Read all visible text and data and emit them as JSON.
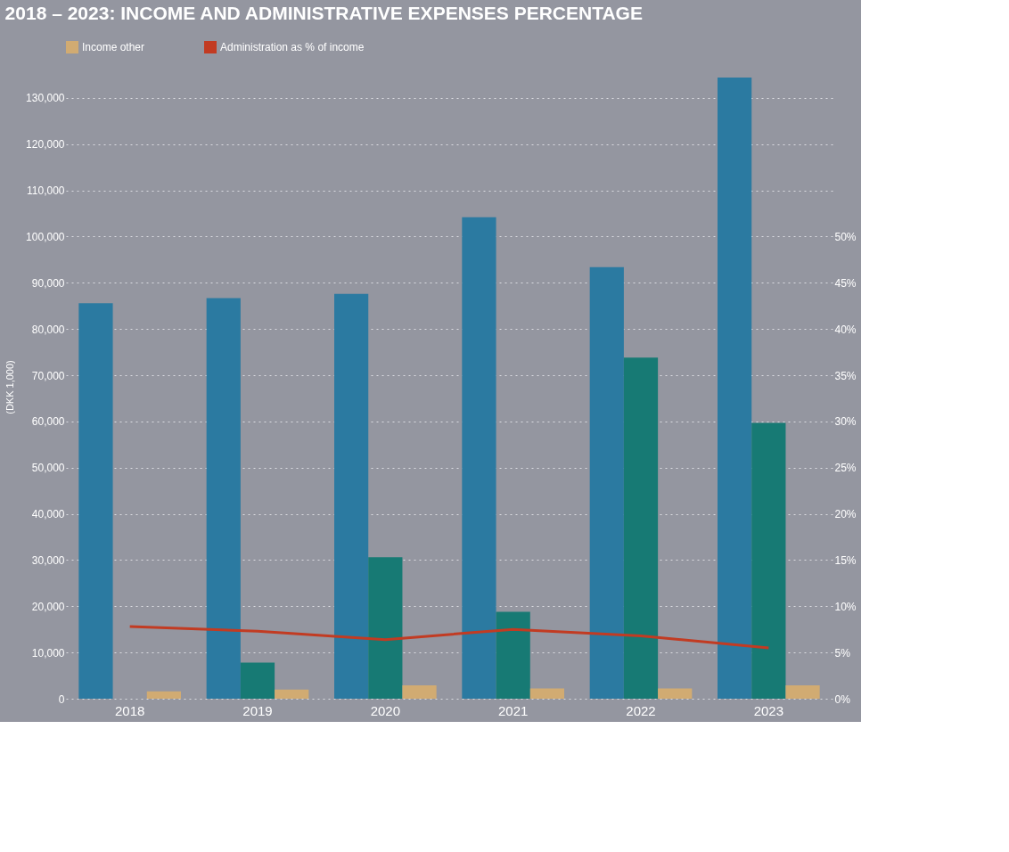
{
  "chart_data": {
    "type": "bar",
    "title": "2018 – 2023: INCOME AND ADMINISTRATIVE EXPENSES PERCENTAGE",
    "ylabel": "(DKK 1,000)",
    "categories": [
      "2018",
      "2019",
      "2020",
      "2021",
      "2022",
      "2023"
    ],
    "series": [
      {
        "color": "#2b7aa1",
        "values": [
          85600,
          86700,
          87600,
          104200,
          93400,
          134400
        ]
      },
      {
        "color": "#177a74",
        "values": [
          null,
          7800,
          30600,
          18800,
          73800,
          59700
        ]
      },
      {
        "name": "Income other",
        "color": "#d1ab72",
        "values": [
          1600,
          2000,
          2900,
          2200,
          2200,
          2900
        ]
      },
      {
        "name": "Administration as % of income",
        "type": "line",
        "axis": "y2",
        "color": "#c23b22",
        "values": [
          7.8,
          7.3,
          6.4,
          7.5,
          6.8,
          5.5
        ]
      }
    ],
    "ylim": [
      0,
      135000
    ],
    "yticks": [
      0,
      {
        "value": 10000,
        "label": "10,000"
      },
      {
        "value": 20000,
        "label": "20,000"
      },
      {
        "value": 30000,
        "label": "30,000"
      },
      {
        "value": 40000,
        "label": "40,000"
      },
      {
        "value": 50000,
        "label": "50,000"
      },
      {
        "value": 60000,
        "label": "60,000"
      },
      {
        "value": 70000,
        "label": "70,000"
      },
      {
        "value": 80000,
        "label": "80,000"
      },
      {
        "value": 90000,
        "label": "90,000"
      },
      {
        "value": 100000,
        "label": "100,000"
      },
      {
        "value": 110000,
        "label": "110,000"
      },
      {
        "value": 120000,
        "label": "120,000"
      },
      {
        "value": 130000,
        "label": "130,000"
      }
    ],
    "y2lim": [
      0,
      67.5
    ],
    "y2ticks": [
      {
        "value": 0,
        "label": "0%"
      },
      {
        "value": 5,
        "label": "5%"
      },
      {
        "value": 10,
        "label": "10%"
      },
      {
        "value": 15,
        "label": "15%"
      },
      {
        "value": 20,
        "label": "20%"
      },
      {
        "value": 25,
        "label": "25%"
      },
      {
        "value": 30,
        "label": "30%"
      },
      {
        "value": 35,
        "label": "35%"
      },
      {
        "value": 40,
        "label": "40%"
      },
      {
        "value": 45,
        "label": "45%"
      },
      {
        "value": 50,
        "label": "50%"
      }
    ],
    "grid": "y",
    "legend": "top"
  }
}
